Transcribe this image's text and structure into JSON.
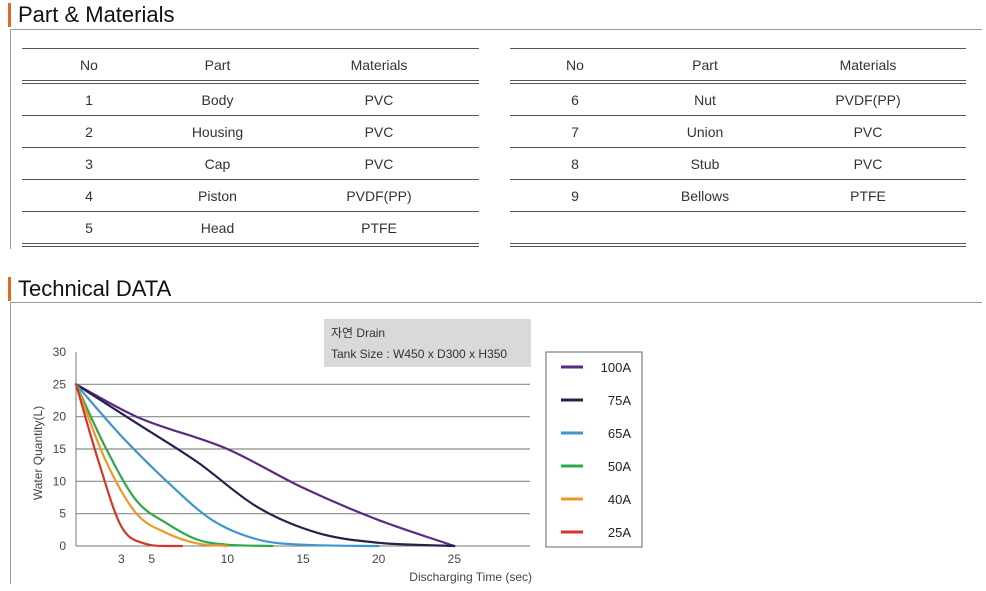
{
  "parts_section": {
    "title": "Part & Materials",
    "headers": [
      "No",
      "Part",
      "Materials"
    ],
    "left_rows": [
      [
        "1",
        "Body",
        "PVC"
      ],
      [
        "2",
        "Housing",
        "PVC"
      ],
      [
        "3",
        "Cap",
        "PVC"
      ],
      [
        "4",
        "Piston",
        "PVDF(PP)"
      ],
      [
        "5",
        "Head",
        "PTFE"
      ]
    ],
    "right_rows": [
      [
        "6",
        "Nut",
        "PVDF(PP)"
      ],
      [
        "7",
        "Union",
        "PVC"
      ],
      [
        "8",
        "Stub",
        "PVC"
      ],
      [
        "9",
        "Bellows",
        "PTFE"
      ],
      [
        "",
        "",
        ""
      ]
    ]
  },
  "tech_section": {
    "title": "Technical DATA"
  },
  "chart_data": {
    "type": "line",
    "title": "",
    "xlabel": "Discharging Time (sec)",
    "ylabel": "Water Quantity(L)",
    "annotation": [
      "자연 Drain",
      "Tank Size : W450 x D300 x H350"
    ],
    "xlim": [
      0,
      30
    ],
    "ylim": [
      0,
      30
    ],
    "x_ticks": [
      3,
      5,
      10,
      15,
      20,
      25
    ],
    "y_ticks": [
      0,
      5,
      10,
      15,
      20,
      25,
      30
    ],
    "grid": "horizontal",
    "legend_position": "right",
    "series": [
      {
        "name": "100A",
        "color": "#5b2a86",
        "x": [
          0,
          4,
          10,
          15,
          20,
          25
        ],
        "y": [
          25,
          20,
          15,
          9,
          4,
          0
        ]
      },
      {
        "name": "75A",
        "color": "#24234a",
        "x": [
          0,
          4,
          8,
          12,
          16,
          20,
          25
        ],
        "y": [
          25,
          19,
          13,
          6,
          2,
          0.5,
          0
        ]
      },
      {
        "name": "65A",
        "color": "#3d96cd",
        "x": [
          0,
          3,
          6,
          9,
          12,
          15,
          20
        ],
        "y": [
          25,
          17,
          10,
          4,
          1,
          0.2,
          0
        ]
      },
      {
        "name": "50A",
        "color": "#2ea84a",
        "x": [
          0,
          2,
          4,
          6,
          8,
          10,
          13
        ],
        "y": [
          25,
          15,
          7,
          3.5,
          1,
          0.2,
          0
        ]
      },
      {
        "name": "40A",
        "color": "#e99a2a",
        "x": [
          0,
          2,
          4,
          6,
          8,
          10
        ],
        "y": [
          25,
          13,
          5,
          2,
          0.4,
          0
        ]
      },
      {
        "name": "25A",
        "color": "#d3362b",
        "x": [
          0,
          1.5,
          3,
          4.5,
          6,
          7
        ],
        "y": [
          25,
          13,
          3,
          0.4,
          0,
          0
        ]
      }
    ]
  }
}
